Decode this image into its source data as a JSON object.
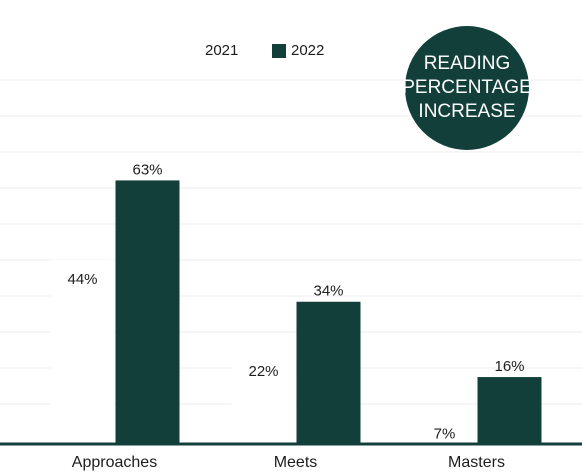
{
  "chart_data": {
    "type": "bar",
    "title": "READING PERCENTAGE INCREASE",
    "categories": [
      "Approaches",
      "Meets",
      "Masters"
    ],
    "series": [
      {
        "name": "2021",
        "color": "#ffffff",
        "values": [
          44,
          22,
          7
        ],
        "value_labels": [
          "44%",
          "22%",
          "7%"
        ]
      },
      {
        "name": "2022",
        "color": "#133f3b",
        "values": [
          63,
          34,
          16
        ],
        "value_labels": [
          "63%",
          "34%",
          "16%"
        ]
      }
    ],
    "ylim": [
      0,
      87
    ],
    "grid": true
  }
}
